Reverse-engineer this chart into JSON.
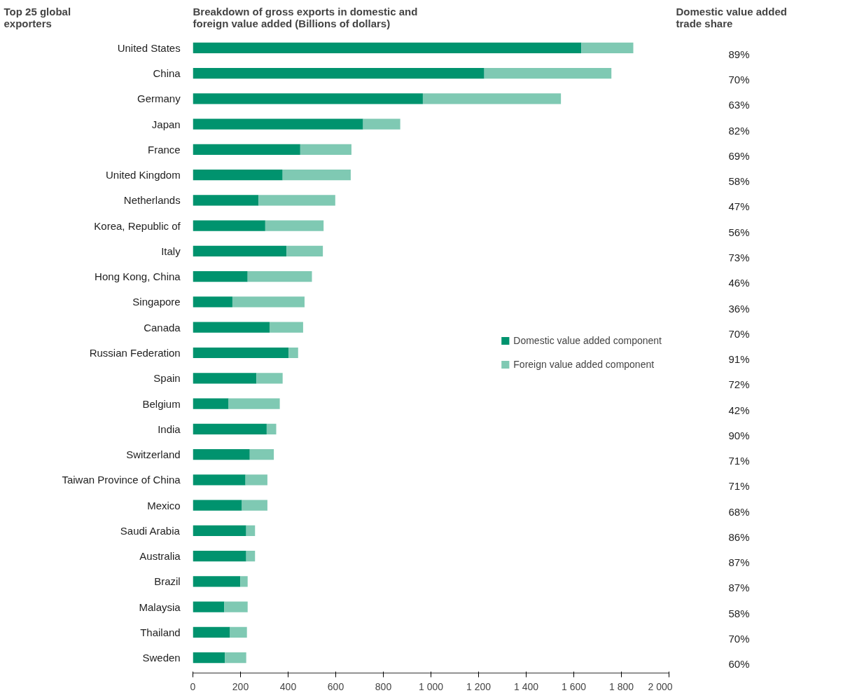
{
  "chart_data": {
    "type": "bar",
    "orientation": "horizontal",
    "stacked": true,
    "title": "Breakdown of gross exports in domestic and foreign value added (Billions of dollars)",
    "ylabel": "Top 25 global exporters",
    "y2label": "Domestic value added trade share",
    "categories": [
      "United States",
      "China",
      "Germany",
      "Japan",
      "France",
      "United Kingdom",
      "Netherlands",
      "Korea, Republic of",
      "Italy",
      "Hong Kong, China",
      "Singapore",
      "Canada",
      "Russian Federation",
      "Spain",
      "Belgium",
      "India",
      "Switzerland",
      "Taiwan Province of China",
      "Mexico",
      "Saudi Arabia",
      "Australia",
      "Brazil",
      "Malaysia",
      "Thailand",
      "Sweden"
    ],
    "series": [
      {
        "name": "Domestic value added component",
        "color": "#00936e",
        "values": [
          1632,
          1224,
          966,
          715,
          451,
          377,
          276,
          304,
          393,
          230,
          166,
          322,
          402,
          267,
          150,
          310,
          239,
          221,
          206,
          224,
          224,
          199,
          132,
          156,
          135
        ]
      },
      {
        "name": "Foreign value added component",
        "color": "#7fc9b3",
        "values": [
          218,
          534,
          580,
          156,
          215,
          286,
          322,
          245,
          153,
          270,
          303,
          141,
          40,
          110,
          215,
          40,
          101,
          92,
          107,
          37,
          37,
          31,
          98,
          71,
          89
        ]
      }
    ],
    "xlim": [
      0,
      2000
    ],
    "xticks": [
      0,
      200,
      400,
      600,
      800,
      {
        "value": 1000,
        "label": "1 000"
      },
      {
        "value": 1200,
        "label": "1 200"
      },
      {
        "value": 1400,
        "label": "1 400"
      },
      {
        "value": 1600,
        "label": "1 600"
      },
      {
        "value": 1800,
        "label": "1 800"
      },
      {
        "value": 2000,
        "label": "2 000"
      }
    ],
    "legend": "right",
    "annotations": [
      "89%",
      "70%",
      "63%",
      "82%",
      "69%",
      "58%",
      "47%",
      "56%",
      "73%",
      "46%",
      "36%",
      "70%",
      "91%",
      "72%",
      "42%",
      "90%",
      "71%",
      "71%",
      "68%",
      "86%",
      "87%",
      "87%",
      "58%",
      "70%",
      "60%"
    ]
  }
}
